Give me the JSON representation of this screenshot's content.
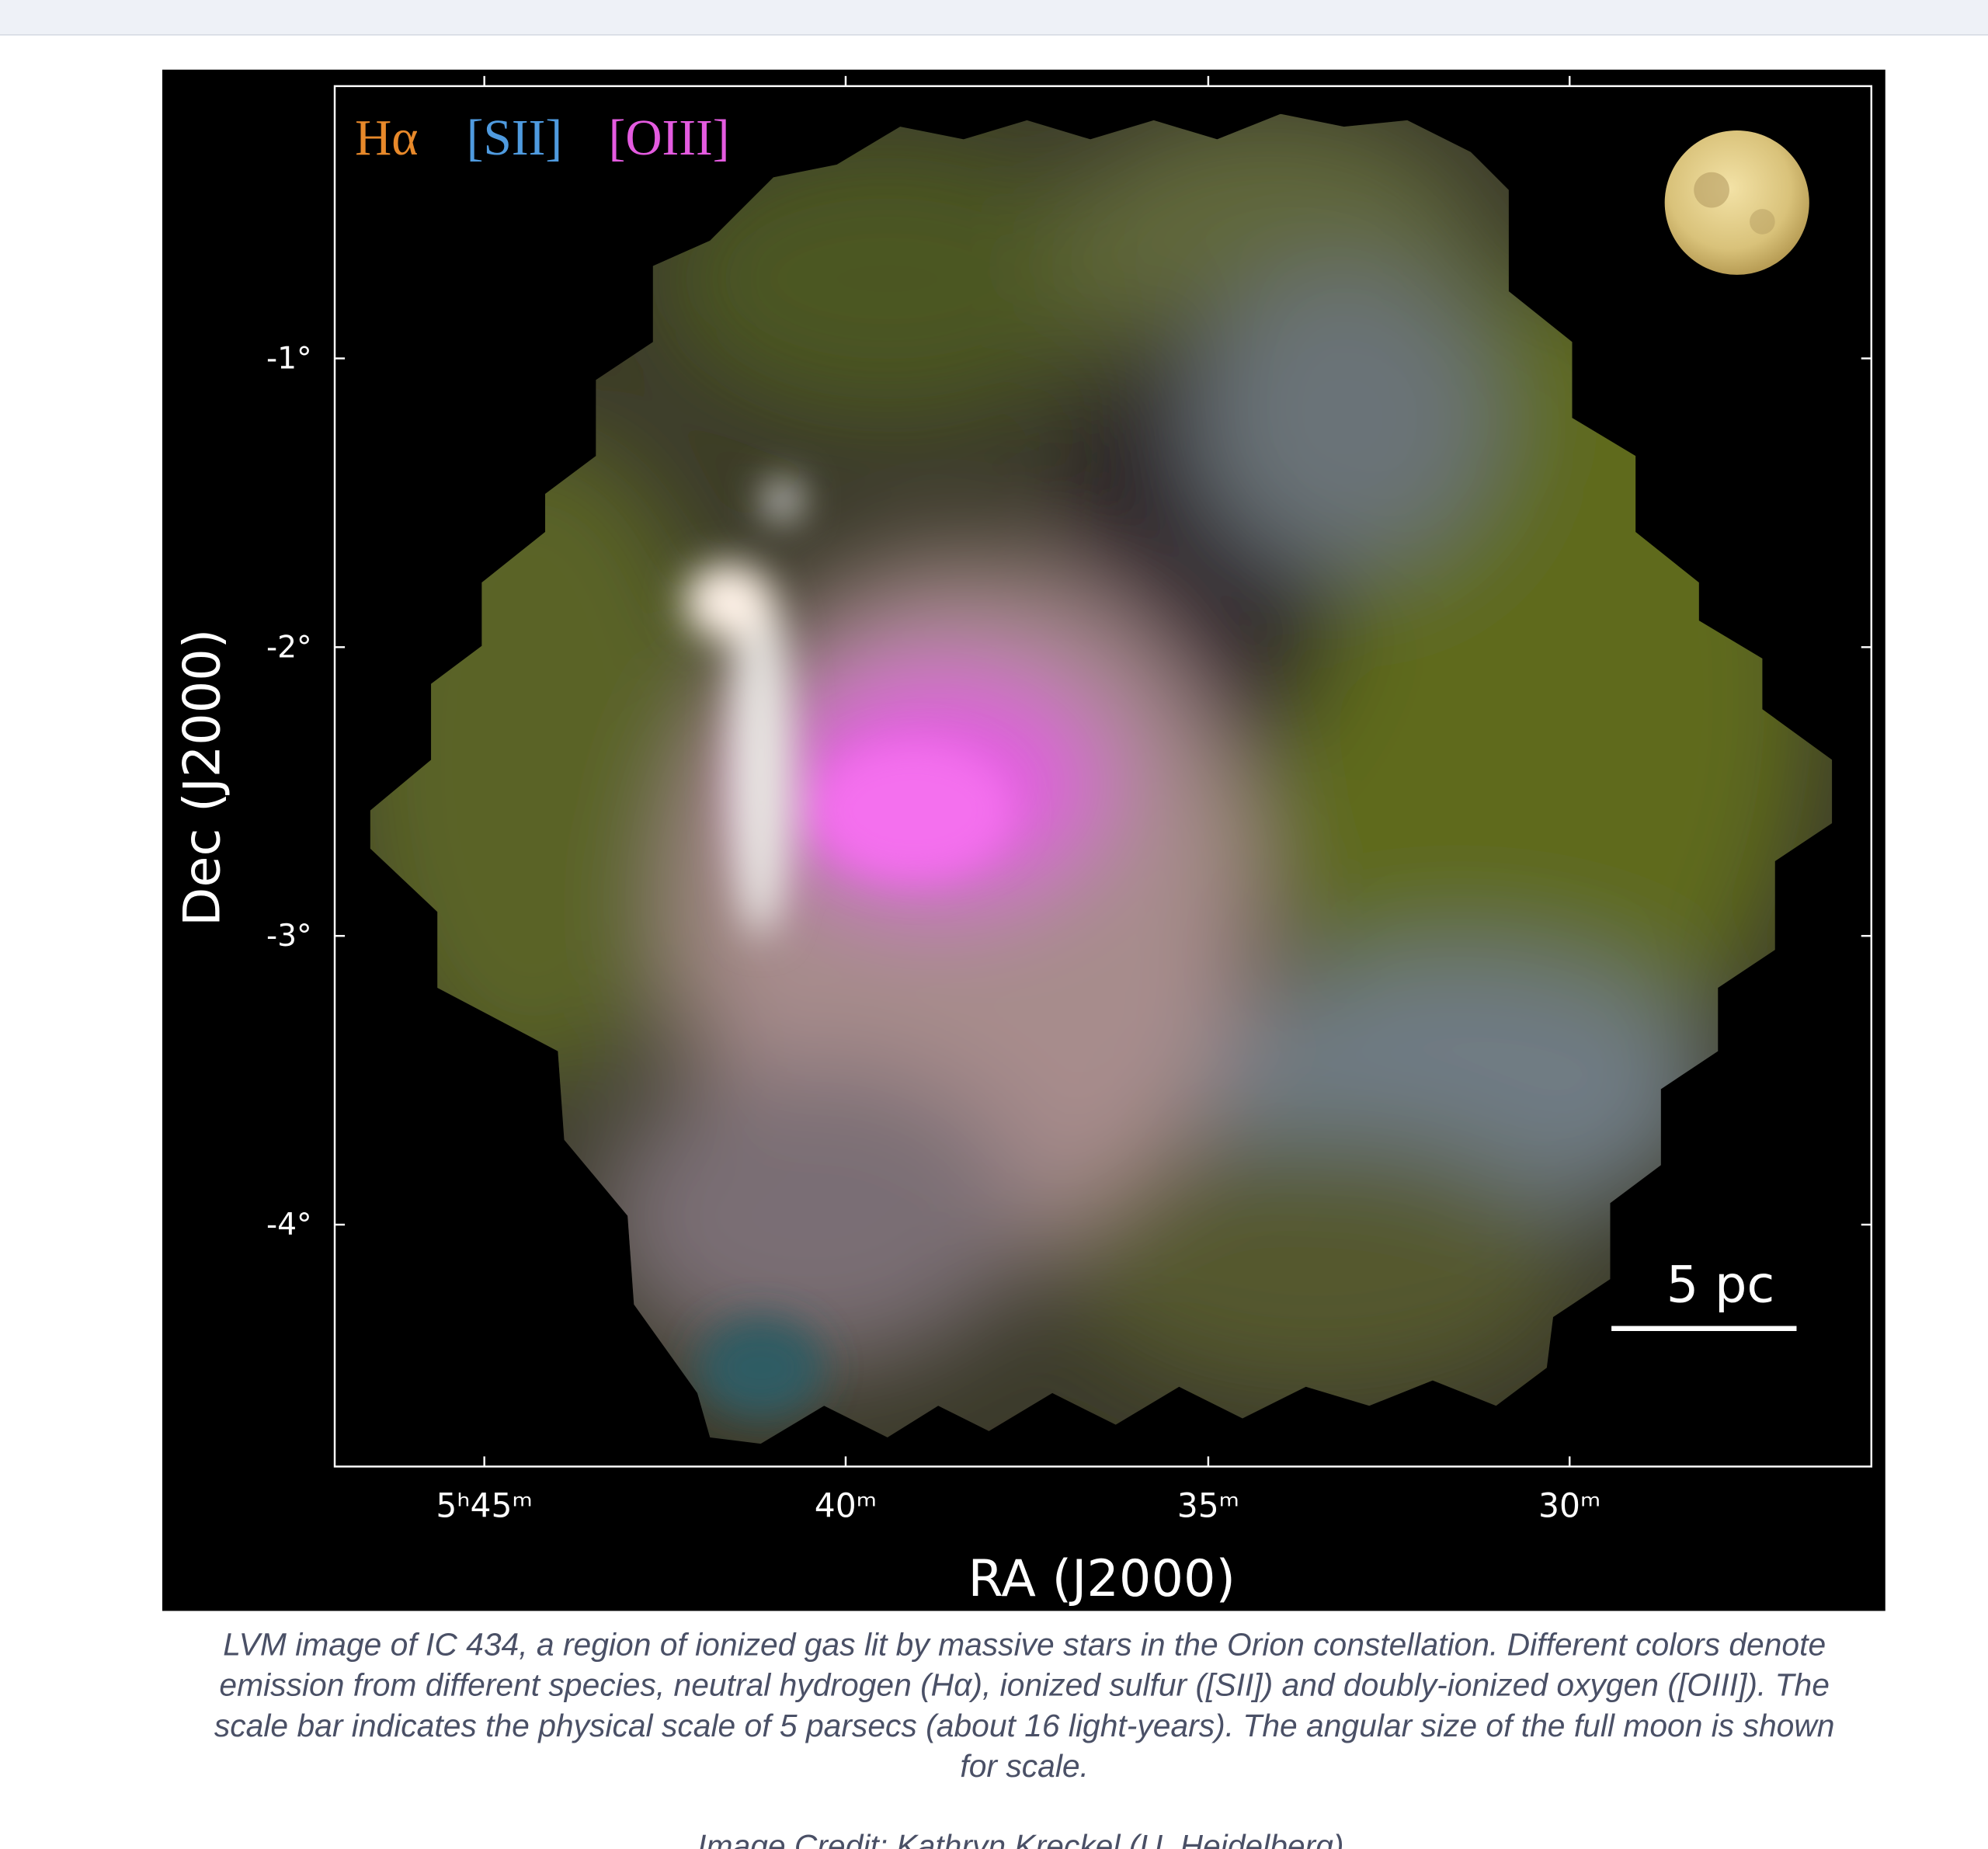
{
  "figure": {
    "legend": {
      "ha": "Hα",
      "sii": "[SII]",
      "oiii": "[OIII]"
    },
    "y_axis": {
      "label": "Dec (J2000)",
      "ticks": [
        "-1°",
        "-2°",
        "-3°",
        "-4°"
      ]
    },
    "x_axis": {
      "label": "RA (J2000)",
      "ticks": [
        "5ʰ45ᵐ",
        "40ᵐ",
        "35ᵐ",
        "30ᵐ"
      ]
    },
    "scale_bar": "5 pc"
  },
  "caption": {
    "lines": [
      "LVM image of IC 434, a region of ionized gas lit by massive stars in the Orion constellation. Different colors denote",
      "emission from different species, neutral hydrogen (Hα), ionized sulfur ([SII]) and doubly-ionized oxygen ([OIII]). The",
      "scale bar indicates the physical scale of 5 parsecs (about 16 light-years). The angular size of the full moon is shown",
      "for scale."
    ],
    "credit": "Image Credit: Kathryn Kreckel (U. Heidelberg)"
  }
}
